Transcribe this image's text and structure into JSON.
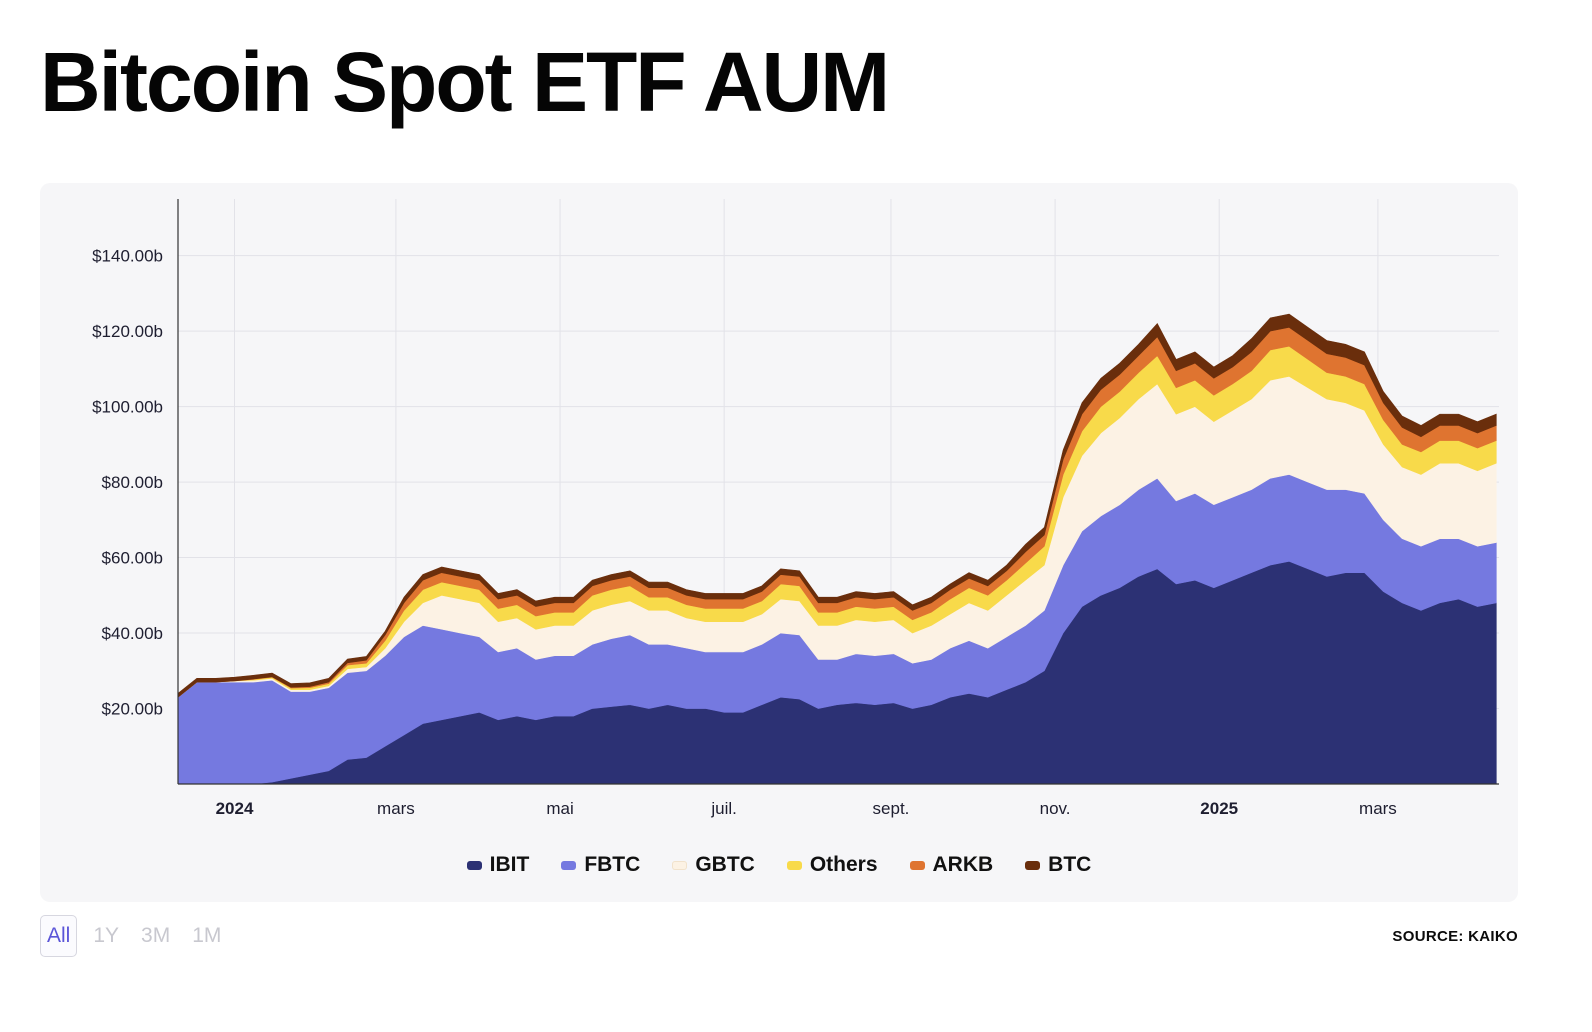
{
  "title": "Bitcoin Spot ETF AUM",
  "source": "SOURCE: KAIKO",
  "range_buttons": [
    {
      "label": "All",
      "active": true
    },
    {
      "label": "1Y",
      "active": false
    },
    {
      "label": "3M",
      "active": false
    },
    {
      "label": "1M",
      "active": false
    }
  ],
  "chart_data": {
    "type": "area",
    "stacked": true,
    "title": "Bitcoin Spot ETF AUM",
    "xlabel": "",
    "ylabel": "",
    "ylim": [
      0,
      155
    ],
    "y_unit": "billion USD",
    "y_ticks": [
      {
        "value": 20,
        "label": "$20.00b"
      },
      {
        "value": 40,
        "label": "$40.00b"
      },
      {
        "value": 60,
        "label": "$60.00b"
      },
      {
        "value": 80,
        "label": "$80.00b"
      },
      {
        "value": 100,
        "label": "$100.00b"
      },
      {
        "value": 120,
        "label": "$120.00b"
      },
      {
        "value": 140,
        "label": "$140.00b"
      }
    ],
    "x_range": [
      "2023-12-11",
      "2025-04-15"
    ],
    "x_ticks": [
      {
        "date": "2024-01-01",
        "label": "2024",
        "bold": true
      },
      {
        "date": "2024-03-01",
        "label": "mars",
        "bold": false
      },
      {
        "date": "2024-05-01",
        "label": "mai",
        "bold": false
      },
      {
        "date": "2024-07-01",
        "label": "juil.",
        "bold": false
      },
      {
        "date": "2024-09-01",
        "label": "sept.",
        "bold": false
      },
      {
        "date": "2024-11-01",
        "label": "nov.",
        "bold": false
      },
      {
        "date": "2025-01-01",
        "label": "2025",
        "bold": true
      },
      {
        "date": "2025-03-01",
        "label": "mars",
        "bold": false
      }
    ],
    "grid": true,
    "legend_position": "bottom-center",
    "dates": [
      "2023-12-11",
      "2023-12-18",
      "2023-12-25",
      "2024-01-01",
      "2024-01-08",
      "2024-01-15",
      "2024-01-22",
      "2024-01-29",
      "2024-02-05",
      "2024-02-12",
      "2024-02-19",
      "2024-02-26",
      "2024-03-04",
      "2024-03-11",
      "2024-03-18",
      "2024-03-25",
      "2024-04-01",
      "2024-04-08",
      "2024-04-15",
      "2024-04-22",
      "2024-04-29",
      "2024-05-06",
      "2024-05-13",
      "2024-05-20",
      "2024-05-27",
      "2024-06-03",
      "2024-06-10",
      "2024-06-17",
      "2024-06-24",
      "2024-07-01",
      "2024-07-08",
      "2024-07-15",
      "2024-07-22",
      "2024-07-29",
      "2024-08-05",
      "2024-08-12",
      "2024-08-19",
      "2024-08-26",
      "2024-09-02",
      "2024-09-09",
      "2024-09-16",
      "2024-09-23",
      "2024-09-30",
      "2024-10-07",
      "2024-10-14",
      "2024-10-21",
      "2024-10-28",
      "2024-11-04",
      "2024-11-11",
      "2024-11-18",
      "2024-11-25",
      "2024-12-02",
      "2024-12-09",
      "2024-12-16",
      "2024-12-23",
      "2024-12-30",
      "2025-01-06",
      "2025-01-13",
      "2025-01-20",
      "2025-01-27",
      "2025-02-03",
      "2025-02-10",
      "2025-02-17",
      "2025-02-24",
      "2025-03-03",
      "2025-03-10",
      "2025-03-17",
      "2025-03-24",
      "2025-03-31",
      "2025-04-07",
      "2025-04-14"
    ],
    "series": [
      {
        "name": "IBIT",
        "color": "#2c3174",
        "values": [
          0,
          0,
          0,
          0,
          0,
          0.5,
          1.5,
          2.5,
          3.5,
          6.5,
          7,
          10,
          13,
          16,
          17,
          18,
          19,
          17,
          18,
          17,
          18,
          18,
          20,
          20.5,
          21,
          20,
          21,
          20,
          20,
          19,
          19,
          21,
          23,
          22.5,
          20,
          21,
          21.5,
          21,
          21.5,
          20,
          21,
          23,
          24,
          23,
          25,
          27,
          30,
          40,
          47,
          50,
          52,
          55,
          57,
          53,
          54,
          52,
          54,
          56,
          58,
          59,
          57,
          55,
          56,
          56,
          51,
          48,
          46,
          48,
          49,
          47,
          48
        ]
      },
      {
        "name": "FBTC",
        "color": "#7579e0",
        "values": [
          23,
          27,
          27,
          27,
          27,
          27,
          23,
          22,
          22,
          23,
          23,
          24,
          26,
          26,
          24,
          22,
          20,
          18,
          18,
          16,
          16,
          16,
          17,
          18,
          18.5,
          17,
          16,
          16,
          15,
          16,
          16,
          16,
          17,
          17,
          13,
          12,
          13,
          13,
          13,
          12,
          12,
          13,
          14,
          13,
          14,
          15,
          16,
          18,
          20,
          21,
          22,
          23,
          24,
          22,
          23,
          22,
          22,
          22,
          23,
          23,
          23,
          23,
          22,
          21,
          19,
          17,
          17,
          17,
          16,
          16,
          16
        ]
      },
      {
        "name": "GBTC",
        "color": "#fcf2e4",
        "values": [
          0,
          0,
          0,
          0.3,
          0.5,
          0.5,
          0.5,
          0.5,
          0.5,
          1,
          1,
          2,
          4,
          6,
          9,
          9,
          9,
          8,
          8,
          8,
          8,
          8,
          9,
          9,
          9,
          9,
          9,
          8,
          8,
          8,
          8,
          8,
          9,
          9,
          9,
          9,
          9,
          9,
          9,
          8,
          9,
          9,
          10,
          10,
          11,
          12,
          12,
          18,
          20,
          22,
          23,
          24,
          25,
          23,
          23,
          22,
          23,
          24,
          26,
          26,
          25,
          24,
          23,
          22,
          20,
          19,
          19,
          20,
          20,
          20,
          21
        ]
      },
      {
        "name": "Others",
        "color": "#f8da4a",
        "values": [
          0,
          0,
          0,
          0,
          0.2,
          0.3,
          0.4,
          0.5,
          0.6,
          1,
          1,
          2,
          3,
          3.5,
          3.5,
          3.5,
          3.5,
          3.5,
          3.5,
          3.5,
          3.5,
          3.5,
          4,
          4,
          4,
          3.5,
          3.5,
          3.5,
          3.5,
          3.5,
          3.5,
          3.5,
          4,
          4,
          3.5,
          3.5,
          3.5,
          3.5,
          3.5,
          3.5,
          3.5,
          4,
          4,
          4,
          4,
          4.5,
          5,
          6,
          6.5,
          7,
          7,
          7,
          7.5,
          7,
          7,
          7,
          7,
          7.5,
          8,
          8,
          7.5,
          7,
          7,
          7,
          6.5,
          6,
          6,
          6,
          6,
          6,
          6
        ]
      },
      {
        "name": "ARKB",
        "color": "#df7430",
        "values": [
          0,
          0,
          0,
          0,
          0.1,
          0.1,
          0.2,
          0.3,
          0.4,
          0.6,
          0.8,
          1.5,
          2,
          2.5,
          2.5,
          2.5,
          2.5,
          2.5,
          2.5,
          2.5,
          2.5,
          2.5,
          2.5,
          2.5,
          2.5,
          2.5,
          2.5,
          2.5,
          2.5,
          2.5,
          2.5,
          2.5,
          2.5,
          2.5,
          2.5,
          2.5,
          2.5,
          2.5,
          2.5,
          2.5,
          2.5,
          2.5,
          2.5,
          2.5,
          2.5,
          3,
          3,
          4,
          4.5,
          4.5,
          4.5,
          4.5,
          5,
          4.5,
          4.5,
          4.5,
          4.5,
          5,
          5,
          5,
          5,
          5,
          5,
          5,
          4.5,
          4.5,
          4,
          4,
          4,
          4,
          4
        ]
      },
      {
        "name": "BTC",
        "color": "#6a2e0c",
        "values": [
          1,
          1,
          1,
          1,
          1,
          1,
          1,
          1,
          1,
          1,
          1,
          1,
          1.5,
          1.5,
          1.5,
          1.5,
          1.5,
          1.5,
          1.5,
          1.5,
          1.5,
          1.5,
          1.5,
          1.5,
          1.5,
          1.5,
          1.5,
          1.5,
          1.5,
          1.5,
          1.5,
          1.5,
          1.5,
          1.5,
          1.5,
          1.5,
          1.5,
          1.5,
          1.5,
          1.5,
          1.5,
          1.5,
          1.5,
          1.5,
          1.5,
          2,
          2,
          2.5,
          3,
          3,
          3,
          3,
          3.5,
          3,
          3,
          3,
          3,
          3.5,
          3.5,
          3.5,
          3.5,
          3.5,
          3.5,
          3.5,
          3,
          3,
          3,
          3,
          3,
          3,
          3
        ]
      }
    ]
  }
}
